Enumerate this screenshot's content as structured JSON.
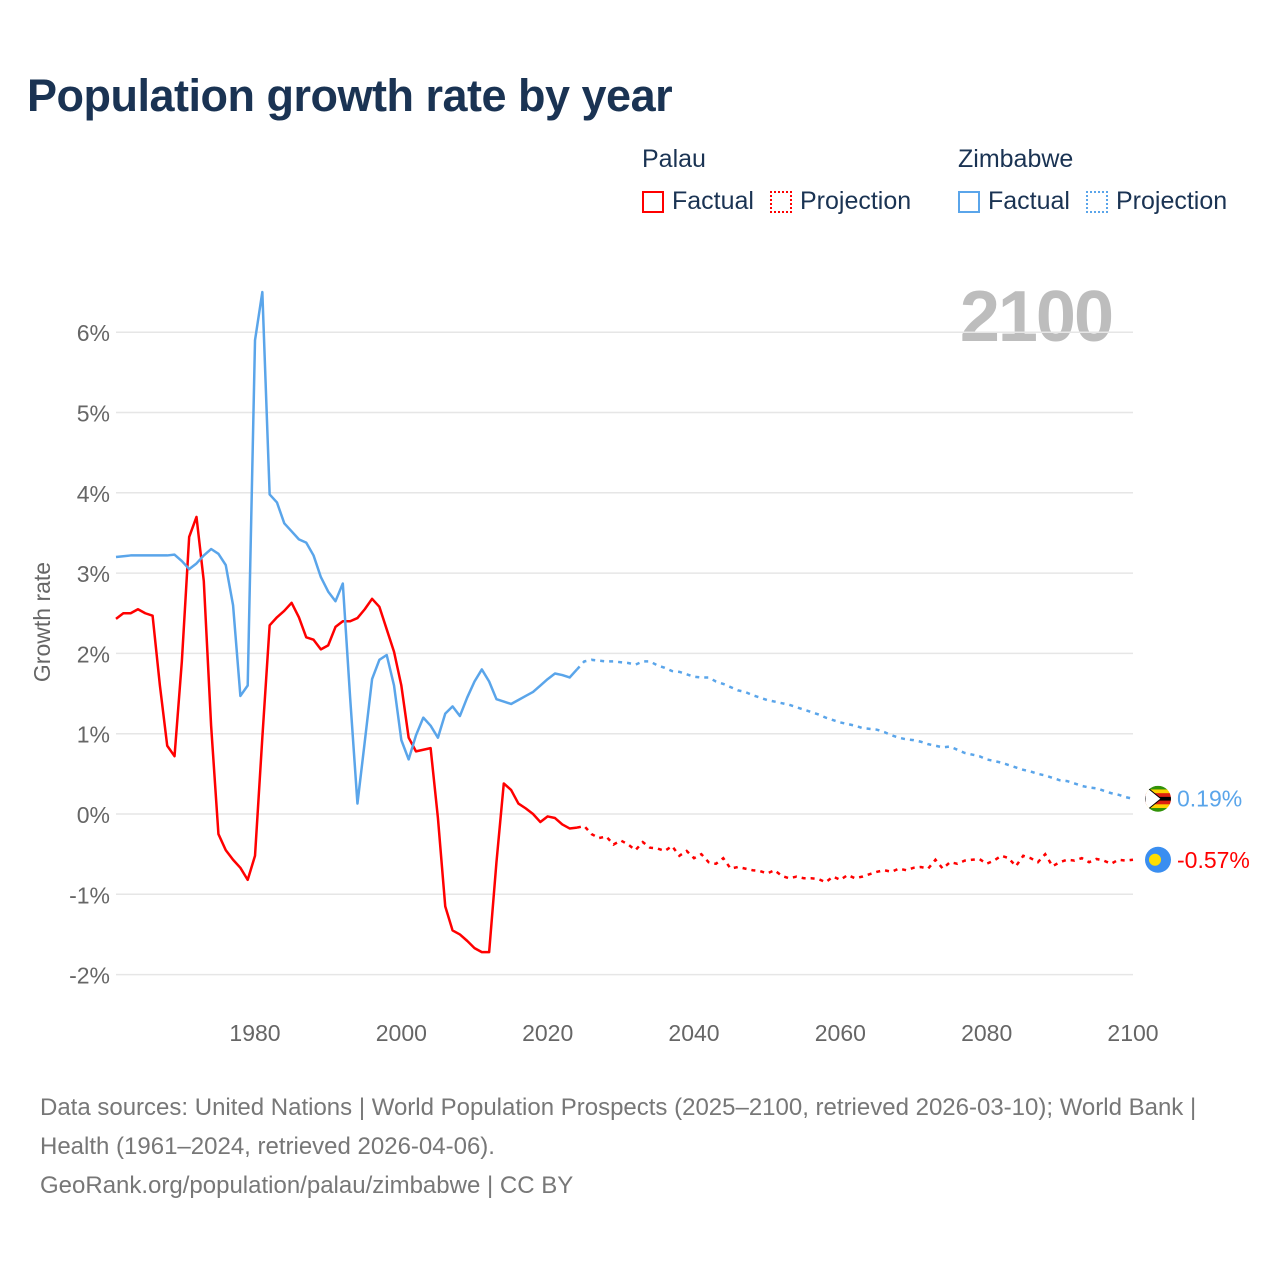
{
  "title": "Population growth rate by year",
  "legend": {
    "groups": [
      {
        "name": "Palau",
        "factual": "Factual",
        "projection": "Projection",
        "color": "#ff0000"
      },
      {
        "name": "Zimbabwe",
        "factual": "Factual",
        "projection": "Projection",
        "color": "#5aa5ea"
      }
    ]
  },
  "current_year": "2100",
  "end_labels": {
    "zimbabwe": "0.19%",
    "palau": "-0.57%"
  },
  "footer": {
    "sources": "Data sources: United Nations | World Population Prospects (2025–2100, retrieved 2026-03-10); World Bank | Health (1961–2024, retrieved 2026-04-06).",
    "credit": "GeoRank.org/population/palau/zimbabwe | CC BY"
  },
  "chart_data": {
    "type": "line",
    "title": "Population growth rate by year",
    "xlabel": "",
    "ylabel": "Growth rate",
    "xlim": [
      1961,
      2100
    ],
    "ylim": [
      -2.3,
      6.6
    ],
    "x_ticks": [
      "1980",
      "2000",
      "2020",
      "2040",
      "2060",
      "2080",
      "2100"
    ],
    "y_ticks": [
      "-2%",
      "-1%",
      "0%",
      "1%",
      "2%",
      "3%",
      "4%",
      "5%",
      "6%"
    ],
    "grid": true,
    "legend_position": "top-right",
    "factual_start": 1961,
    "projection_start": 2025,
    "series": [
      {
        "name": "Palau",
        "color": "#ff0000",
        "factual": [
          2.43,
          2.5,
          2.5,
          2.55,
          2.5,
          2.47,
          1.6,
          0.85,
          0.72,
          1.9,
          3.45,
          3.7,
          2.9,
          1.1,
          -0.25,
          -0.45,
          -0.57,
          -0.67,
          -0.82,
          -0.52,
          0.95,
          2.35,
          2.45,
          2.53,
          2.63,
          2.45,
          2.2,
          2.17,
          2.05,
          2.1,
          2.33,
          2.4,
          2.4,
          2.44,
          2.55,
          2.68,
          2.58,
          2.3,
          2.02,
          1.6,
          0.95,
          0.78,
          0.8,
          0.82,
          -0.05,
          -1.15,
          -1.45,
          -1.5,
          -1.58,
          -1.67,
          -1.72,
          -1.72,
          -0.6,
          0.38,
          0.3,
          0.13,
          0.07,
          0.0,
          -0.1,
          -0.03,
          -0.05,
          -0.13,
          -0.18,
          -0.17
        ],
        "projection": [
          -0.15,
          -0.25,
          -0.3,
          -0.28,
          -0.38,
          -0.33,
          -0.38,
          -0.45,
          -0.35,
          -0.42,
          -0.43,
          -0.46,
          -0.4,
          -0.52,
          -0.46,
          -0.55,
          -0.5,
          -0.6,
          -0.62,
          -0.55,
          -0.68,
          -0.66,
          -0.68,
          -0.7,
          -0.71,
          -0.74,
          -0.7,
          -0.77,
          -0.8,
          -0.78,
          -0.8,
          -0.8,
          -0.81,
          -0.85,
          -0.78,
          -0.82,
          -0.76,
          -0.8,
          -0.78,
          -0.75,
          -0.72,
          -0.7,
          -0.72,
          -0.68,
          -0.7,
          -0.67,
          -0.66,
          -0.68,
          -0.57,
          -0.68,
          -0.6,
          -0.62,
          -0.58,
          -0.57,
          -0.56,
          -0.62,
          -0.58,
          -0.52,
          -0.55,
          -0.65,
          -0.52,
          -0.55,
          -0.6,
          -0.5,
          -0.65,
          -0.6,
          -0.57,
          -0.58,
          -0.55,
          -0.6,
          -0.56,
          -0.58,
          -0.62,
          -0.57,
          -0.58,
          -0.57
        ]
      },
      {
        "name": "Zimbabwe",
        "color": "#5aa5ea",
        "factual": [
          3.2,
          3.21,
          3.22,
          3.22,
          3.22,
          3.22,
          3.22,
          3.22,
          3.23,
          3.15,
          3.05,
          3.12,
          3.22,
          3.3,
          3.24,
          3.1,
          2.6,
          1.47,
          1.6,
          5.9,
          6.5,
          3.98,
          3.88,
          3.62,
          3.52,
          3.42,
          3.38,
          3.22,
          2.95,
          2.77,
          2.65,
          2.87,
          1.45,
          0.13,
          0.9,
          1.68,
          1.92,
          1.98,
          1.6,
          0.92,
          0.68,
          0.98,
          1.2,
          1.1,
          0.95,
          1.25,
          1.34,
          1.22,
          1.45,
          1.65,
          1.8,
          1.65,
          1.43,
          1.4,
          1.37,
          1.42,
          1.47,
          1.52,
          1.6,
          1.68,
          1.75,
          1.73,
          1.7,
          1.8
        ],
        "projection": [
          1.9,
          1.92,
          1.91,
          1.9,
          1.9,
          1.89,
          1.88,
          1.86,
          1.9,
          1.9,
          1.85,
          1.82,
          1.78,
          1.77,
          1.74,
          1.71,
          1.7,
          1.7,
          1.65,
          1.62,
          1.58,
          1.54,
          1.52,
          1.48,
          1.45,
          1.42,
          1.4,
          1.38,
          1.36,
          1.33,
          1.3,
          1.27,
          1.24,
          1.2,
          1.17,
          1.14,
          1.12,
          1.1,
          1.07,
          1.06,
          1.05,
          1.02,
          0.98,
          0.95,
          0.93,
          0.92,
          0.9,
          0.87,
          0.85,
          0.83,
          0.84,
          0.8,
          0.76,
          0.74,
          0.72,
          0.68,
          0.66,
          0.64,
          0.61,
          0.58,
          0.55,
          0.53,
          0.5,
          0.48,
          0.45,
          0.42,
          0.41,
          0.38,
          0.35,
          0.33,
          0.32,
          0.29,
          0.26,
          0.24,
          0.21,
          0.19
        ]
      }
    ]
  }
}
